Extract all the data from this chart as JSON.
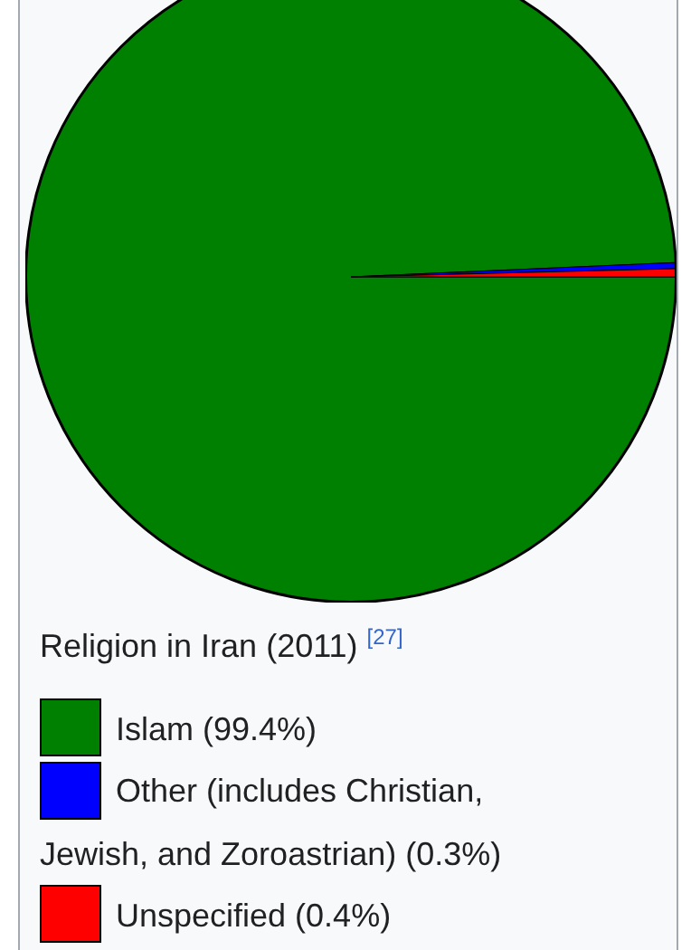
{
  "chart_data": {
    "type": "pie",
    "title": "Religion in Iran (2011) $^{[27]}$",
    "categories": [
      "Islam (99.4%)",
      "Other (includes Christian, Jewish, and Zoroastrian) (0.3%)",
      "Unspecified (0.4%)"
    ],
    "values": [
      99.4,
      0.3,
      0.4
    ],
    "colors": [
      "#008000",
      "#0000ff",
      "#ff0000"
    ],
    "legend": "bottom"
  }
}
